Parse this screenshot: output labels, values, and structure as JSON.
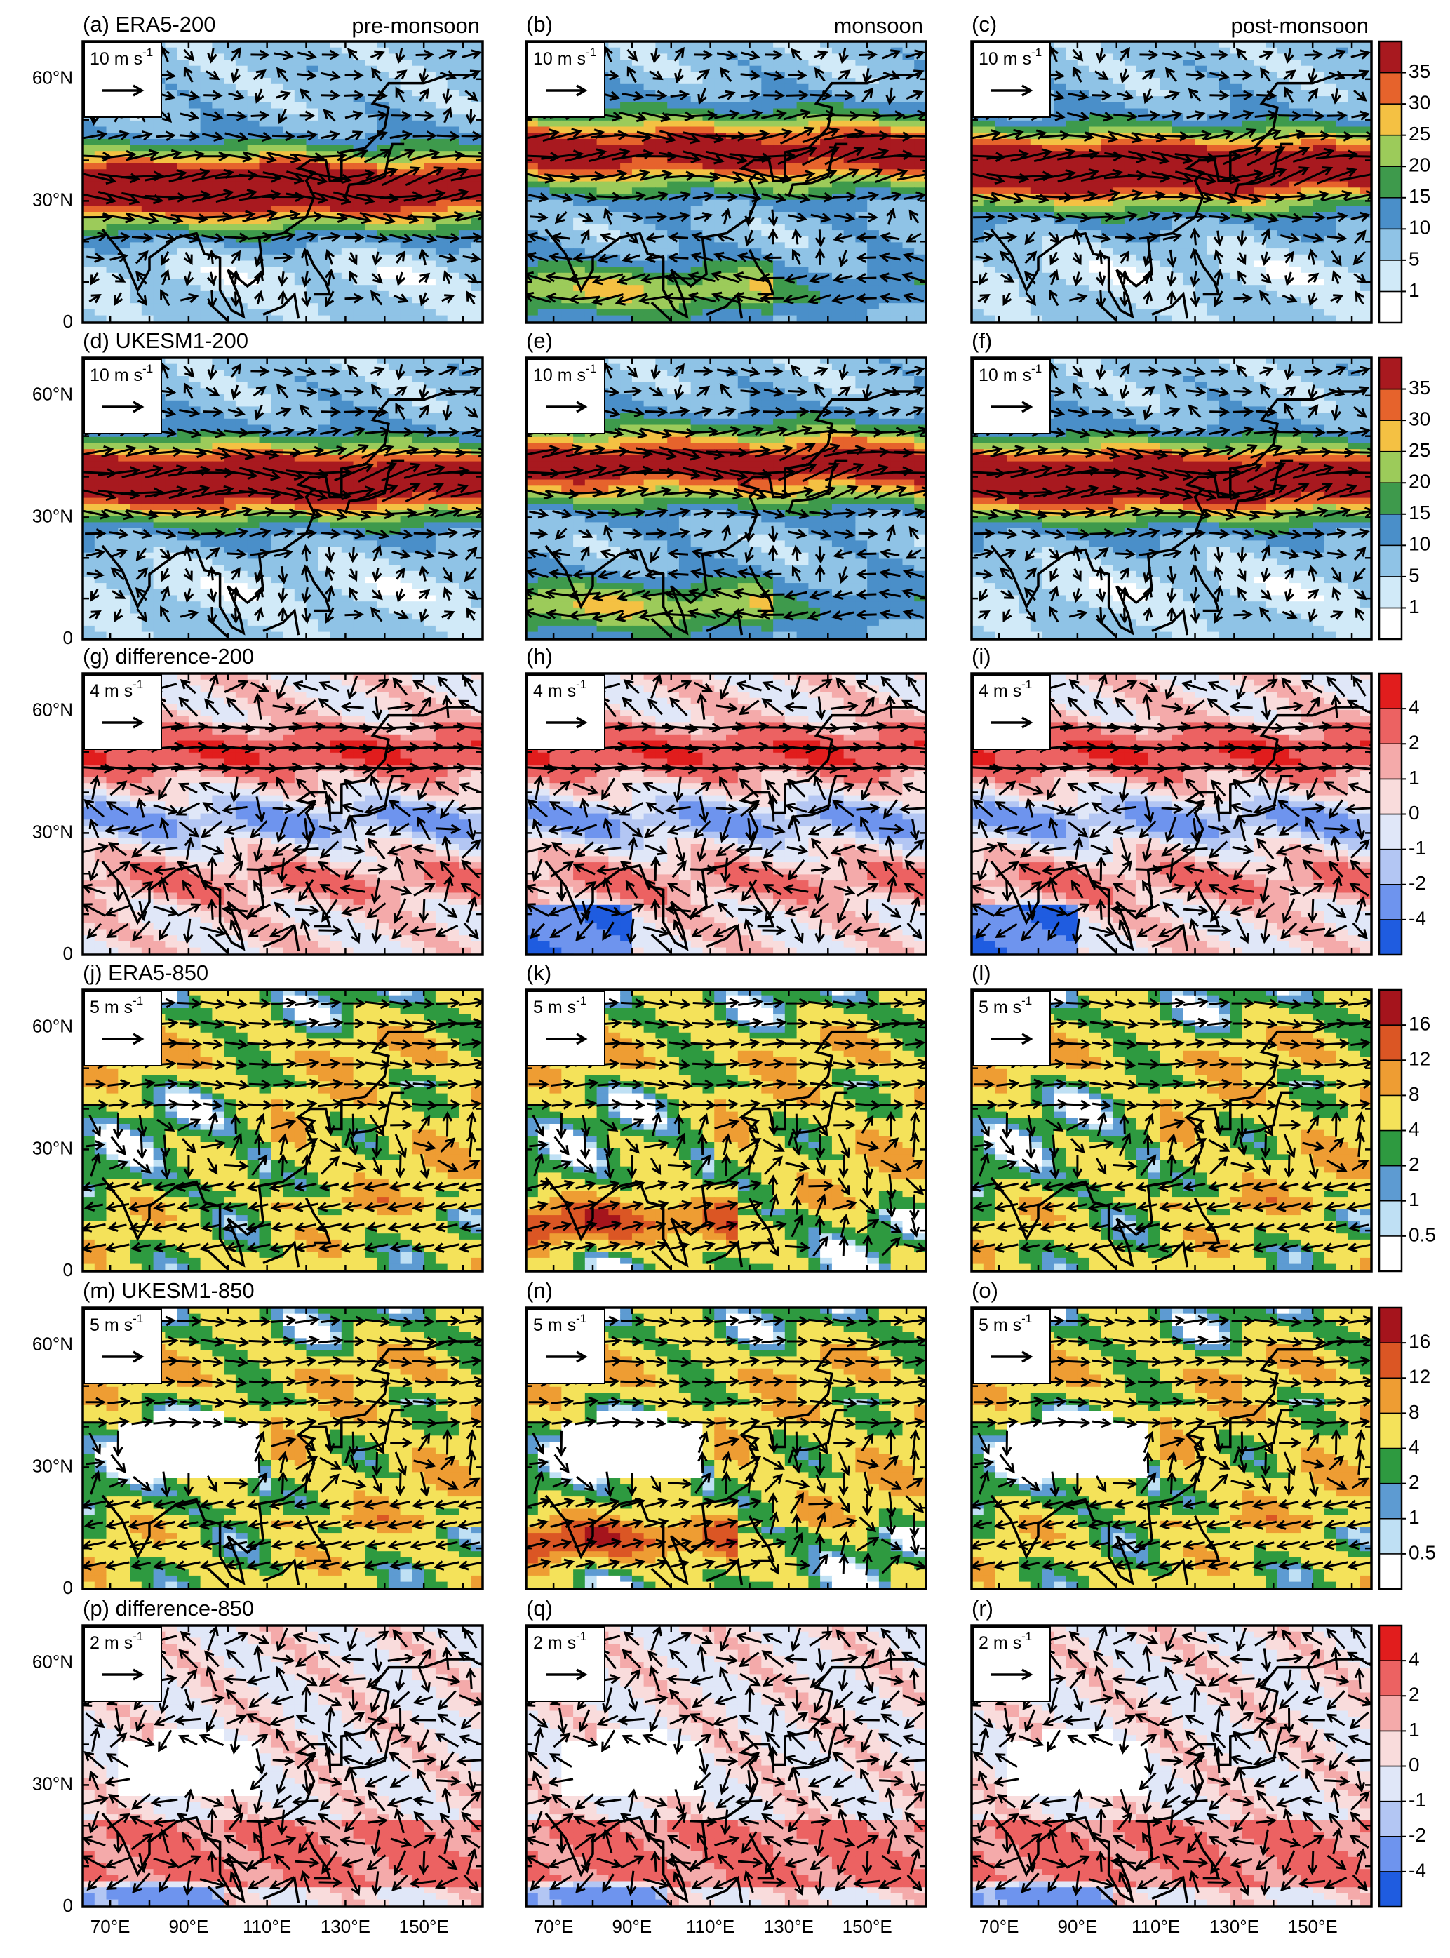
{
  "panels": [
    {
      "label": "(a) ERA5-200",
      "season": "pre-monsoon",
      "reference": {
        "text": "10 m s",
        "exponent": "-1"
      }
    },
    {
      "label": "(b)",
      "season": "monsoon",
      "reference": {
        "text": "10 m s",
        "exponent": "-1"
      }
    },
    {
      "label": "(c)",
      "season": "post-monsoon",
      "reference": {
        "text": "10 m s",
        "exponent": "-1"
      }
    },
    {
      "label": "(d) UKESM1-200",
      "reference": {
        "text": "10 m s",
        "exponent": "-1"
      }
    },
    {
      "label": "(e)",
      "reference": {
        "text": "10 m s",
        "exponent": "-1"
      }
    },
    {
      "label": "(f)",
      "reference": {
        "text": "10 m s",
        "exponent": "-1"
      }
    },
    {
      "label": "(g) difference-200",
      "reference": {
        "text": "4 m s",
        "exponent": "-1"
      }
    },
    {
      "label": "(h)",
      "reference": {
        "text": "4 m s",
        "exponent": "-1"
      }
    },
    {
      "label": "(i)",
      "reference": {
        "text": "4 m s",
        "exponent": "-1"
      }
    },
    {
      "label": "(j) ERA5-850",
      "reference": {
        "text": "5 m s",
        "exponent": "-1"
      }
    },
    {
      "label": "(k)",
      "reference": {
        "text": "5 m s",
        "exponent": "-1"
      }
    },
    {
      "label": "(l)",
      "reference": {
        "text": "5 m s",
        "exponent": "-1"
      }
    },
    {
      "label": "(m) UKESM1-850",
      "reference": {
        "text": "5 m s",
        "exponent": "-1"
      }
    },
    {
      "label": "(n)",
      "reference": {
        "text": "5 m s",
        "exponent": "-1"
      }
    },
    {
      "label": "(o)",
      "reference": {
        "text": "5 m s",
        "exponent": "-1"
      }
    },
    {
      "label": "(p) difference-850",
      "reference": {
        "text": "2 m s",
        "exponent": "-1"
      }
    },
    {
      "label": "(q)",
      "reference": {
        "text": "2 m s",
        "exponent": "-1"
      }
    },
    {
      "label": "(r)",
      "reference": {
        "text": "2 m s",
        "exponent": "-1"
      }
    }
  ],
  "lat_labels": [
    "60°N",
    "30°N",
    "0"
  ],
  "lon_labels": [
    "70°E",
    "90°E",
    "110°E",
    "130°E",
    "150°E"
  ],
  "colorbars": [
    {
      "labels": [
        "35",
        "30",
        "25",
        "20",
        "15",
        "10",
        "5",
        "1"
      ]
    },
    {
      "labels": [
        "35",
        "30",
        "25",
        "20",
        "15",
        "10",
        "5",
        "1"
      ]
    },
    {
      "labels": [
        "4",
        "2",
        "1",
        "0",
        "-1",
        "-2",
        "-4"
      ]
    },
    {
      "labels": [
        "16",
        "12",
        "8",
        "4",
        "2",
        "1",
        "0.5"
      ]
    },
    {
      "labels": [
        "16",
        "12",
        "8",
        "4",
        "2",
        "1",
        "0.5"
      ]
    },
    {
      "labels": [
        "4",
        "2",
        "1",
        "0",
        "-1",
        "-2",
        "-4"
      ]
    }
  ]
}
